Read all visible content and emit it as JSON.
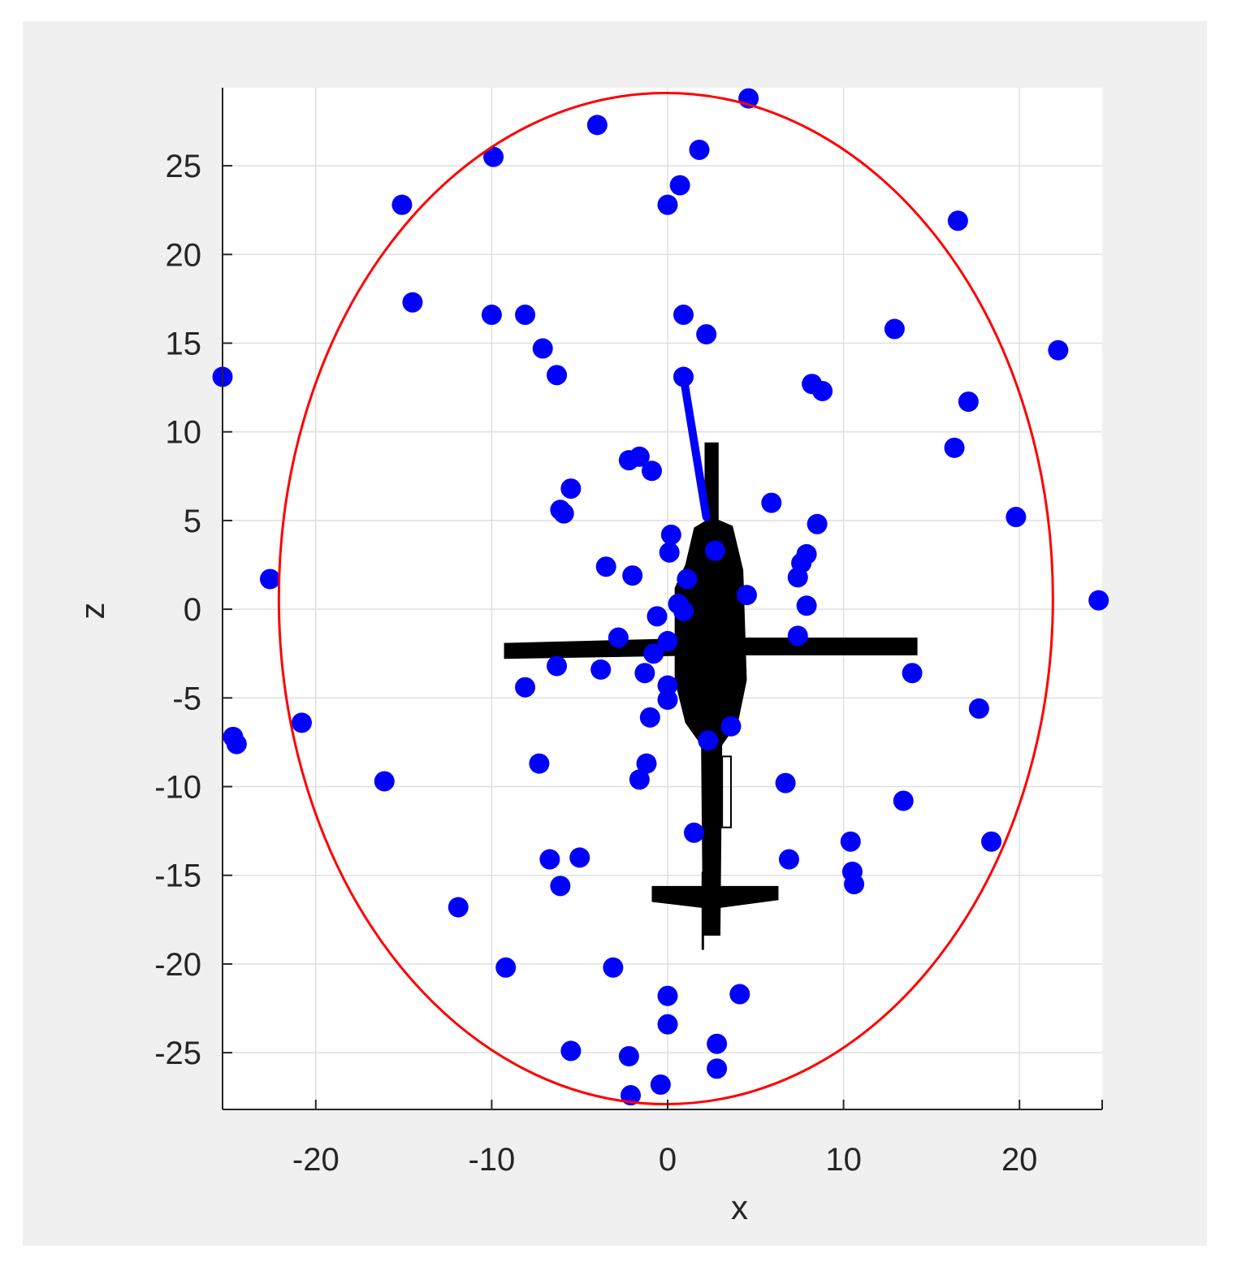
{
  "chart_data": {
    "type": "scatter",
    "xlabel": "x",
    "ylabel": "z",
    "xlim": [
      -25.3,
      24.7
    ],
    "ylim": [
      -28.2,
      29.4
    ],
    "xticks": [
      -20,
      -10,
      0,
      10,
      20
    ],
    "yticks": [
      -25,
      -20,
      -15,
      -10,
      -5,
      0,
      5,
      10,
      15,
      20,
      25
    ],
    "grid": true,
    "colors": {
      "points": "#0000ff",
      "circle": "#ff0000",
      "helicopter": "#000000",
      "axes_bg": "#ffffff",
      "figure_bg": "#f0f0f0",
      "grid": "#dfdfdf"
    },
    "circle": {
      "center": [
        -0.1,
        0.6
      ],
      "radius_x": 22,
      "radius_z": 28.5
    },
    "blue_line": {
      "x": [
        0.9,
        2.2
      ],
      "z": [
        13.1,
        5.2
      ]
    },
    "points": [
      [
        4.6,
        28.8
      ],
      [
        -4.0,
        27.3
      ],
      [
        1.8,
        25.9
      ],
      [
        -9.9,
        25.5
      ],
      [
        0.7,
        23.9
      ],
      [
        -15.1,
        22.8
      ],
      [
        0.0,
        22.8
      ],
      [
        16.5,
        21.9
      ],
      [
        -14.5,
        17.3
      ],
      [
        -10.0,
        16.6
      ],
      [
        -8.1,
        16.6
      ],
      [
        0.9,
        16.6
      ],
      [
        2.2,
        15.5
      ],
      [
        12.9,
        15.8
      ],
      [
        -7.1,
        14.7
      ],
      [
        22.2,
        14.6
      ],
      [
        -6.3,
        13.2
      ],
      [
        0.9,
        13.1
      ],
      [
        -25.3,
        13.1
      ],
      [
        8.2,
        12.7
      ],
      [
        8.8,
        12.3
      ],
      [
        17.1,
        11.7
      ],
      [
        16.3,
        9.1
      ],
      [
        -1.6,
        8.6
      ],
      [
        -2.2,
        8.4
      ],
      [
        -0.9,
        7.8
      ],
      [
        -5.5,
        6.8
      ],
      [
        -6.1,
        5.6
      ],
      [
        -5.9,
        5.4
      ],
      [
        5.9,
        6.0
      ],
      [
        19.8,
        5.2
      ],
      [
        8.5,
        4.8
      ],
      [
        0.2,
        4.2
      ],
      [
        7.9,
        3.1
      ],
      [
        0.1,
        3.2
      ],
      [
        2.7,
        3.3
      ],
      [
        7.6,
        2.6
      ],
      [
        -3.5,
        2.4
      ],
      [
        -2.0,
        1.9
      ],
      [
        1.1,
        1.7
      ],
      [
        7.4,
        1.8
      ],
      [
        -22.6,
        1.7
      ],
      [
        4.5,
        0.8
      ],
      [
        24.5,
        0.5
      ],
      [
        0.6,
        0.3
      ],
      [
        0.9,
        -0.1
      ],
      [
        7.9,
        0.2
      ],
      [
        -0.6,
        -0.4
      ],
      [
        -2.8,
        -1.6
      ],
      [
        7.4,
        -1.5
      ],
      [
        0.0,
        -1.8
      ],
      [
        -0.8,
        -2.5
      ],
      [
        -6.3,
        -3.2
      ],
      [
        -3.8,
        -3.4
      ],
      [
        -1.3,
        -3.6
      ],
      [
        13.9,
        -3.6
      ],
      [
        0.0,
        -4.3
      ],
      [
        -8.1,
        -4.4
      ],
      [
        0.0,
        -5.1
      ],
      [
        17.7,
        -5.6
      ],
      [
        -1.0,
        -6.1
      ],
      [
        -20.8,
        -6.4
      ],
      [
        3.6,
        -6.6
      ],
      [
        -24.7,
        -7.2
      ],
      [
        -24.5,
        -7.6
      ],
      [
        2.3,
        -7.4
      ],
      [
        -7.3,
        -8.7
      ],
      [
        -1.2,
        -8.7
      ],
      [
        -1.6,
        -9.6
      ],
      [
        -16.1,
        -9.7
      ],
      [
        6.7,
        -9.8
      ],
      [
        13.4,
        -10.8
      ],
      [
        1.5,
        -12.6
      ],
      [
        10.4,
        -13.1
      ],
      [
        18.4,
        -13.1
      ],
      [
        -6.7,
        -14.1
      ],
      [
        -5.0,
        -14.0
      ],
      [
        6.9,
        -14.1
      ],
      [
        10.5,
        -14.8
      ],
      [
        10.6,
        -15.5
      ],
      [
        -6.1,
        -15.6
      ],
      [
        -11.9,
        -16.8
      ],
      [
        -9.2,
        -20.2
      ],
      [
        -3.1,
        -20.2
      ],
      [
        0.0,
        -21.8
      ],
      [
        4.1,
        -21.7
      ],
      [
        0.0,
        -23.4
      ],
      [
        2.8,
        -24.5
      ],
      [
        -5.5,
        -24.9
      ],
      [
        -2.2,
        -25.2
      ],
      [
        2.8,
        -25.9
      ],
      [
        -0.4,
        -26.8
      ],
      [
        -2.1,
        -27.4
      ]
    ]
  }
}
